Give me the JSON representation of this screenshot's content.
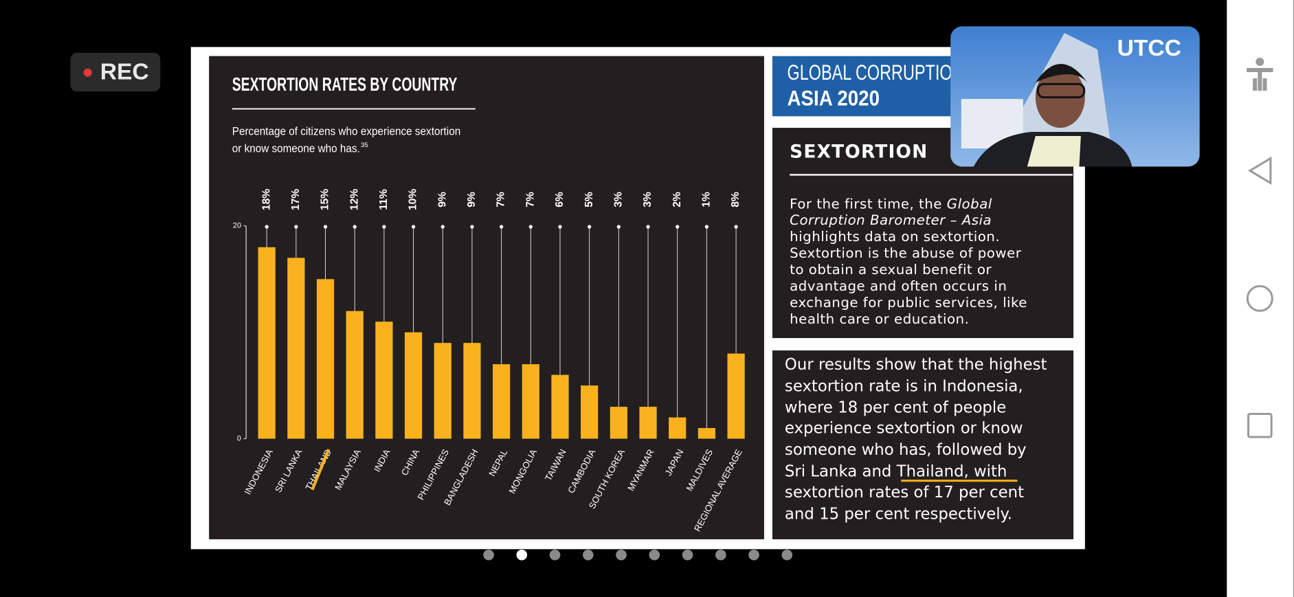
{
  "recording_label": "REC",
  "video": {
    "logo": "UTCC"
  },
  "chart_data": {
    "type": "bar",
    "title": "SEXTORTION RATES BY COUNTRY",
    "subtitle": [
      "Percentage of citizens who experience sextortion",
      "or know someone who has."
    ],
    "footnote": "35",
    "categories": [
      "INDONESIA",
      "SRI LANKA",
      "THAILAND",
      "MALAYSIA",
      "INDIA",
      "CHINA",
      "PHILIPPINES",
      "BANGLADESH",
      "NEPAL",
      "MONGOLIA",
      "TAIWAN",
      "CAMBODIA",
      "SOUTH KOREA",
      "MYANMAR",
      "JAPAN",
      "MALDIVES",
      "REGIONAL AVERAGE"
    ],
    "values": [
      18,
      17,
      15,
      12,
      11,
      10,
      9,
      9,
      7,
      7,
      6,
      5,
      3,
      3,
      2,
      1,
      8
    ],
    "value_labels": [
      "18%",
      "17%",
      "15%",
      "12%",
      "11%",
      "10%",
      "9%",
      "9%",
      "7%",
      "7%",
      "6%",
      "5%",
      "3%",
      "3%",
      "2%",
      "1%",
      "8%"
    ],
    "color": "#f9b21e",
    "ylim": [
      0,
      20
    ],
    "yticks": [
      0,
      20
    ]
  },
  "side": {
    "header": [
      "GLOBAL CORRUPTIO",
      "ASIA 2020"
    ],
    "section_title": "SEXTORTION",
    "intro": [
      [
        "For the first time, the ",
        "Global"
      ],
      [
        "Corruption Barometer – Asia"
      ],
      [
        "highlights data on sextortion."
      ],
      [
        "Sextortion is the abuse of power"
      ],
      [
        "to obtain a sexual benefit or"
      ],
      [
        "advantage and often occurs in"
      ],
      [
        "exchange for public services, like"
      ],
      [
        "health care or education."
      ]
    ],
    "results": [
      [
        "Our results show that the highest"
      ],
      [
        "sextortion rate is in Indonesia,"
      ],
      [
        "where 18 per cent of people"
      ],
      [
        "experience sextortion or know"
      ],
      [
        "someone who has, followed by"
      ],
      [
        "Sri Lanka and ",
        "Thailand, with"
      ],
      [
        "sextortion rates of 17 per cent"
      ],
      [
        "and 15 per cent respectively."
      ]
    ]
  }
}
